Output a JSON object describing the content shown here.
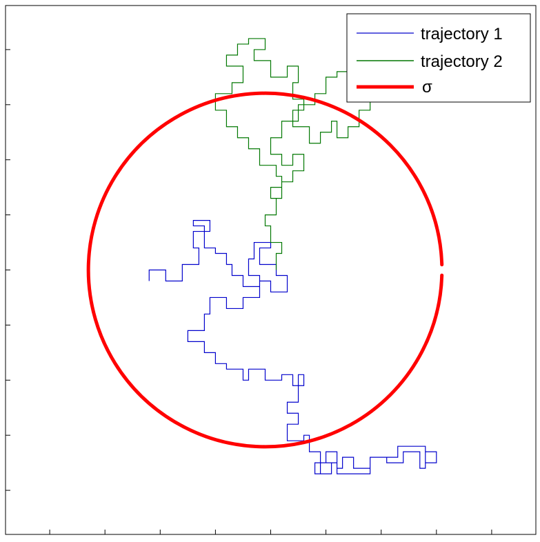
{
  "chart_data": {
    "type": "line",
    "title": "",
    "xlabel": "",
    "ylabel": "",
    "xlim": [
      -48,
      48
    ],
    "ylim": [
      -48,
      48
    ],
    "grid": false,
    "legend": {
      "placement": "top-right",
      "entries": [
        "trajectory 1",
        "trajectory 2",
        "σ"
      ]
    },
    "series": [
      {
        "name": "trajectory 1",
        "color": "#0000cc",
        "points": [
          [
            -22,
            -2
          ],
          [
            -22,
            0
          ],
          [
            -19,
            0
          ],
          [
            -19,
            -2
          ],
          [
            -16,
            -2
          ],
          [
            -16,
            1
          ],
          [
            -13,
            1
          ],
          [
            -13,
            4
          ],
          [
            -14,
            4
          ],
          [
            -14,
            7
          ],
          [
            -11,
            7
          ],
          [
            -11,
            9
          ],
          [
            -14,
            9
          ],
          [
            -14,
            8
          ],
          [
            -12,
            8
          ],
          [
            -12,
            4
          ],
          [
            -10,
            4
          ],
          [
            -10,
            3
          ],
          [
            -8,
            3
          ],
          [
            -8,
            1
          ],
          [
            -7,
            1
          ],
          [
            -7,
            -1
          ],
          [
            -5,
            -1
          ],
          [
            -5,
            -3
          ],
          [
            -2,
            -3
          ],
          [
            -2,
            -1
          ],
          [
            -4,
            -1
          ],
          [
            -4,
            2
          ],
          [
            -3,
            2
          ],
          [
            -3,
            5
          ],
          [
            0,
            5
          ],
          [
            0,
            4
          ],
          [
            -2,
            4
          ],
          [
            -2,
            1
          ],
          [
            1,
            1
          ],
          [
            1,
            -1
          ],
          [
            3,
            -1
          ],
          [
            3,
            -4
          ],
          [
            0,
            -4
          ],
          [
            0,
            -2
          ],
          [
            -2,
            -2
          ],
          [
            -2,
            -5
          ],
          [
            -5,
            -5
          ],
          [
            -5,
            -7
          ],
          [
            -8,
            -7
          ],
          [
            -8,
            -5
          ],
          [
            -11,
            -5
          ],
          [
            -11,
            -8
          ],
          [
            -12,
            -8
          ],
          [
            -12,
            -11
          ],
          [
            -15,
            -11
          ],
          [
            -15,
            -13
          ],
          [
            -12,
            -13
          ],
          [
            -12,
            -15
          ],
          [
            -10,
            -15
          ],
          [
            -10,
            -17
          ],
          [
            -8,
            -17
          ],
          [
            -8,
            -18
          ],
          [
            -5,
            -18
          ],
          [
            -5,
            -20
          ],
          [
            -4,
            -20
          ],
          [
            -4,
            -18
          ],
          [
            -1,
            -18
          ],
          [
            -1,
            -20
          ],
          [
            2,
            -20
          ],
          [
            2,
            -19
          ],
          [
            4,
            -19
          ],
          [
            4,
            -21
          ],
          [
            6,
            -21
          ],
          [
            6,
            -19
          ],
          [
            5,
            -19
          ],
          [
            5,
            -24
          ],
          [
            3,
            -24
          ],
          [
            3,
            -26
          ],
          [
            5,
            -26
          ],
          [
            5,
            -28
          ],
          [
            3,
            -28
          ],
          [
            3,
            -31
          ],
          [
            6,
            -31
          ],
          [
            6,
            -30
          ],
          [
            7,
            -30
          ],
          [
            7,
            -33
          ],
          [
            9,
            -33
          ],
          [
            9,
            -35
          ],
          [
            8,
            -35
          ],
          [
            8,
            -37
          ],
          [
            11,
            -37
          ],
          [
            11,
            -35
          ],
          [
            10,
            -35
          ],
          [
            10,
            -33
          ],
          [
            12,
            -33
          ],
          [
            12,
            -36
          ],
          [
            13,
            -36
          ],
          [
            13,
            -34
          ],
          [
            15,
            -34
          ],
          [
            15,
            -36
          ],
          [
            18,
            -36
          ],
          [
            18,
            -34
          ],
          [
            21,
            -34
          ],
          [
            21,
            -35
          ],
          [
            24,
            -35
          ],
          [
            24,
            -33
          ],
          [
            27,
            -33
          ],
          [
            27,
            -36
          ],
          [
            28,
            -36
          ],
          [
            28,
            -33
          ],
          [
            30,
            -33
          ],
          [
            30,
            -35
          ],
          [
            28,
            -35
          ],
          [
            28,
            -32
          ],
          [
            23,
            -32
          ],
          [
            23,
            -34
          ],
          [
            18,
            -34
          ],
          [
            18,
            -37
          ],
          [
            12,
            -37
          ],
          [
            12,
            -35
          ],
          [
            9,
            -35
          ],
          [
            9,
            -37
          ]
        ]
      },
      {
        "name": "trajectory 2",
        "color": "#007700",
        "points": [
          [
            1,
            0
          ],
          [
            1,
            3
          ],
          [
            2,
            3
          ],
          [
            2,
            5
          ],
          [
            0,
            5
          ],
          [
            0,
            8
          ],
          [
            -1,
            8
          ],
          [
            -1,
            10
          ],
          [
            1,
            10
          ],
          [
            1,
            13
          ],
          [
            0,
            13
          ],
          [
            0,
            15
          ],
          [
            2,
            15
          ],
          [
            2,
            17
          ],
          [
            1,
            17
          ],
          [
            1,
            19
          ],
          [
            -2,
            19
          ],
          [
            -2,
            22
          ],
          [
            -4,
            22
          ],
          [
            -4,
            24
          ],
          [
            -6,
            24
          ],
          [
            -6,
            26
          ],
          [
            -8,
            26
          ],
          [
            -8,
            29
          ],
          [
            -10,
            29
          ],
          [
            -10,
            32
          ],
          [
            -7,
            32
          ],
          [
            -7,
            34
          ],
          [
            -5,
            34
          ],
          [
            -5,
            37
          ],
          [
            -8,
            37
          ],
          [
            -8,
            39
          ],
          [
            -6,
            39
          ],
          [
            -6,
            41
          ],
          [
            -4,
            41
          ],
          [
            -4,
            42
          ],
          [
            -1,
            42
          ],
          [
            -1,
            40
          ],
          [
            -3,
            40
          ],
          [
            -3,
            38
          ],
          [
            0,
            38
          ],
          [
            0,
            35
          ],
          [
            3,
            35
          ],
          [
            3,
            37
          ],
          [
            5,
            37
          ],
          [
            5,
            34
          ],
          [
            4,
            34
          ],
          [
            4,
            31
          ],
          [
            6,
            31
          ],
          [
            6,
            29
          ],
          [
            4,
            29
          ],
          [
            4,
            26
          ],
          [
            7,
            26
          ],
          [
            7,
            23
          ],
          [
            9,
            23
          ],
          [
            9,
            25
          ],
          [
            11,
            25
          ],
          [
            11,
            27
          ],
          [
            12,
            27
          ],
          [
            12,
            24
          ],
          [
            14,
            24
          ],
          [
            14,
            26
          ],
          [
            16,
            26
          ],
          [
            16,
            29
          ],
          [
            18,
            29
          ],
          [
            18,
            32
          ],
          [
            17,
            32
          ],
          [
            17,
            34
          ],
          [
            14,
            34
          ],
          [
            14,
            36
          ],
          [
            12,
            36
          ],
          [
            12,
            35
          ],
          [
            10,
            35
          ],
          [
            10,
            32
          ],
          [
            8,
            32
          ],
          [
            8,
            30
          ],
          [
            5,
            30
          ],
          [
            5,
            27
          ],
          [
            2,
            27
          ],
          [
            2,
            24
          ],
          [
            0,
            24
          ],
          [
            0,
            21
          ],
          [
            2,
            21
          ],
          [
            2,
            19
          ],
          [
            4,
            19
          ],
          [
            4,
            21
          ],
          [
            6,
            21
          ],
          [
            6,
            18
          ],
          [
            4,
            18
          ],
          [
            4,
            16
          ],
          [
            2,
            16
          ],
          [
            2,
            13
          ],
          [
            1,
            13
          ]
        ]
      },
      {
        "name": "σ",
        "color": "#ff0000",
        "shape": "circle",
        "center": [
          -1,
          0
        ],
        "radius": 32,
        "note": "circle drawn as closed red curve with a small gap at the right"
      }
    ]
  }
}
